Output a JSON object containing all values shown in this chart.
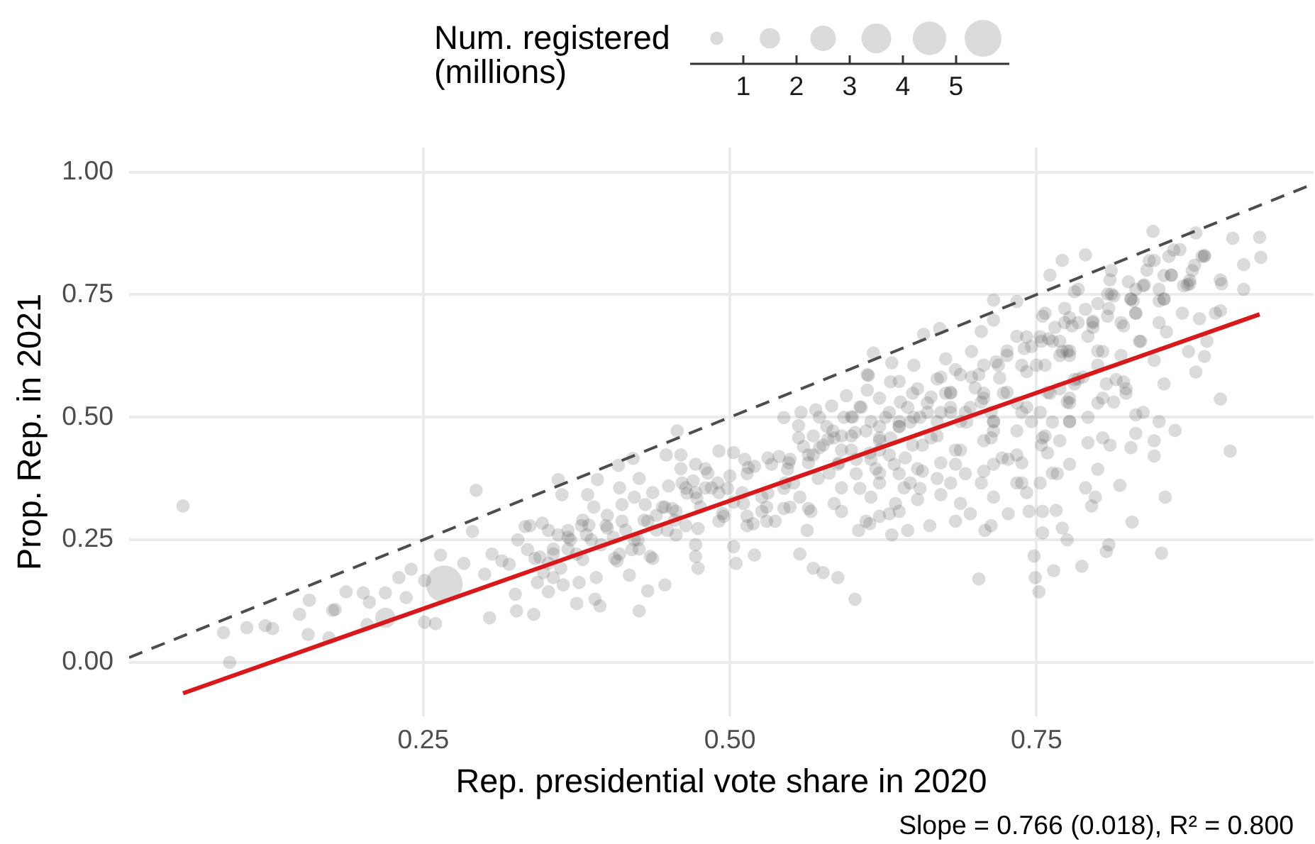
{
  "chart_data": {
    "type": "bubble",
    "xlabel": "Rep. presidential vote share in 2020",
    "ylabel": "Prop. Rep. in 2021",
    "legend_title": "Num. registered\n(millions)",
    "size_legend": [
      1,
      2,
      3,
      4,
      5
    ],
    "annotations": [
      "Slope = 0.766 (0.018), R² = 0.800"
    ],
    "xlim": [
      0.01,
      0.976
    ],
    "ylim": [
      -0.11,
      1.05
    ],
    "xticks": [
      0.25,
      {
        "value": 0.5,
        "label": "0.50"
      },
      0.75
    ],
    "yticks": [
      {
        "value": 0,
        "label": "0.00"
      },
      0.25,
      {
        "value": 0.5,
        "label": "0.50"
      },
      0.75,
      {
        "value": 1,
        "label": "1.00"
      }
    ],
    "grid": true,
    "series": [
      {
        "type": "bubble",
        "color": "#4d4d4d",
        "x": [
          0.267,
          0.219,
          0.054,
          0.092,
          0.087,
          0.106,
          0.121,
          0.127,
          0.149,
          0.156,
          0.157,
          0.173,
          0.178,
          0.176,
          0.187,
          0.201,
          0.206,
          0.204,
          0.219,
          0.23,
          0.24,
          0.236,
          0.251,
          0.251,
          0.26,
          0.264,
          0.283,
          0.293,
          0.29,
          0.304,
          0.326,
          0.34,
          0.333,
          0.36,
          0.347,
          0.327,
          0.314,
          0.325,
          0.343,
          0.352,
          0.362,
          0.356,
          0.306,
          0.363,
          0.392,
          0.409,
          0.421,
          0.457,
          0.448,
          0.46,
          0.472,
          0.491,
          0.503,
          0.544,
          0.558,
          0.556,
          0.57,
          0.583,
          0.595,
          0.612,
          0.617,
          0.632,
          0.612,
          0.638,
          0.384,
          0.389,
          0.412,
          0.412,
          0.431,
          0.447,
          0.472,
          0.485,
          0.51,
          0.53,
          0.547,
          0.568,
          0.591,
          0.615,
          0.634,
          0.622,
          0.599,
          0.579,
          0.638,
          0.368,
          0.383,
          0.4,
          0.368,
          0.352,
          0.356,
          0.364,
          0.377,
          0.391,
          0.375,
          0.39,
          0.394,
          0.408,
          0.418,
          0.426,
          0.433,
          0.447,
          0.435,
          0.456,
          0.474,
          0.472,
          0.503,
          0.505,
          0.52,
          0.491,
          0.514,
          0.537,
          0.557,
          0.563,
          0.568,
          0.576,
          0.588,
          0.602,
          0.566,
          0.591,
          0.611,
          0.632,
          0.638,
          0.622,
          0.845,
          0.88,
          0.91,
          0.932,
          0.933,
          0.919,
          0.919,
          0.901,
          0.9,
          0.9,
          0.889,
          0.887,
          0.88,
          0.874,
          0.883,
          0.875,
          0.887,
          0.867,
          0.854,
          0.831,
          0.827,
          0.835,
          0.856,
          0.854,
          0.846,
          0.79,
          0.771,
          0.761,
          0.781,
          0.808,
          0.809,
          0.831,
          0.715,
          0.715,
          0.734,
          0.671,
          0.658,
          0.65,
          0.613,
          0.757,
          0.773,
          0.796,
          0.775,
          0.753,
          0.738,
          0.757,
          0.781,
          0.8,
          0.815,
          0.823,
          0.831,
          0.85,
          0.8,
          0.777,
          0.726,
          0.707,
          0.688,
          0.68,
          0.707,
          0.734,
          0.753,
          0.715,
          0.692,
          0.661,
          0.649,
          0.622,
          0.607,
          0.638,
          0.669,
          0.908,
          0.855,
          0.852,
          0.828,
          0.818,
          0.846,
          0.863,
          0.809,
          0.807,
          0.787,
          0.764,
          0.752,
          0.749,
          0.748,
          0.775,
          0.771,
          0.755,
          0.703,
          0.708,
          0.713,
          0.727,
          0.744,
          0.755,
          0.766,
          0.795,
          0.798,
          0.79,
          0.8,
          0.81,
          0.827,
          0.831,
          0.846,
          0.767,
          0.777,
          0.753,
          0.742,
          0.715,
          0.696,
          0.684,
          0.663,
          0.645,
          0.605,
          0.672,
          0.653,
          0.63,
          0.615,
          0.638,
          0.657,
          0.684,
          0.707,
          0.727,
          0.738,
          0.757,
          0.777,
          0.746,
          0.715,
          0.688,
          0.657,
          0.622,
          0.603,
          0.5,
          0.52,
          0.54,
          0.56,
          0.58,
          0.6,
          0.65,
          0.68,
          0.7,
          0.72,
          0.74,
          0.76,
          0.79,
          0.81,
          0.84,
          0.86,
          0.45,
          0.47,
          0.43,
          0.4,
          0.38,
          0.465,
          0.49,
          0.494,
          0.474,
          0.515,
          0.531,
          0.548,
          0.531,
          0.552,
          0.564,
          0.573,
          0.585,
          0.589,
          0.602,
          0.614,
          0.606,
          0.627,
          0.631,
          0.643,
          0.647,
          0.655,
          0.664,
          0.672,
          0.68,
          0.68,
          0.697,
          0.693,
          0.705,
          0.713,
          0.717,
          0.722,
          0.738,
          0.742,
          0.746,
          0.755,
          0.759,
          0.771,
          0.775,
          0.779,
          0.788,
          0.796,
          0.792,
          0.804,
          0.813,
          0.821,
          0.829,
          0.837,
          0.85,
          0.854,
          0.87,
          0.879,
          0.862,
          0.887,
          0.763,
          0.738,
          0.763,
          0.792,
          0.804,
          0.821,
          0.813,
          0.837,
          0.655,
          0.68,
          0.705,
          0.635,
          0.614,
          0.585,
          0.581,
          0.556,
          0.544,
          0.511,
          0.498,
          0.453,
          0.461,
          0.482,
          0.473,
          0.519,
          0.544,
          0.622,
          0.688,
          0.734,
          0.759,
          0.713,
          0.726,
          0.734,
          0.763,
          0.755,
          0.792,
          0.808,
          0.825,
          0.846,
          0.875,
          0.672,
          0.664,
          0.639,
          0.697,
          0.705,
          0.676,
          0.647,
          0.606,
          0.622,
          0.593,
          0.573,
          0.564,
          0.631,
          0.3,
          0.32,
          0.335,
          0.345,
          0.37,
          0.385,
          0.395,
          0.405,
          0.415,
          0.425,
          0.44,
          0.455,
          0.42,
          0.44,
          0.38,
          0.36,
          0.337,
          0.352,
          0.368,
          0.379,
          0.399,
          0.41,
          0.422,
          0.433,
          0.445,
          0.449,
          0.456,
          0.464,
          0.476,
          0.48,
          0.491,
          0.495,
          0.503,
          0.514,
          0.526,
          0.534,
          0.545,
          0.549,
          0.557,
          0.437,
          0.422,
          0.46,
          0.48,
          0.387,
          0.356,
          0.341,
          0.348,
          0.375,
          0.406,
          0.426,
          0.437,
          0.472,
          0.464,
          0.514,
          0.53,
          0.549,
          0.526,
          0.512,
          0.426,
          0.41,
          0.564,
          0.576,
          0.588,
          0.591,
          0.603,
          0.611,
          0.619,
          0.63,
          0.638,
          0.649,
          0.653,
          0.661,
          0.669,
          0.676,
          0.684,
          0.688,
          0.696,
          0.703,
          0.707,
          0.715,
          0.723,
          0.726,
          0.734,
          0.742,
          0.75,
          0.754,
          0.761,
          0.769,
          0.777,
          0.765,
          0.777,
          0.742,
          0.719,
          0.684,
          0.669,
          0.653,
          0.645,
          0.63,
          0.615,
          0.599,
          0.584,
          0.568,
          0.572,
          0.591,
          0.622,
          0.642,
          0.669,
          0.692,
          0.715,
          0.734,
          0.754,
          0.769,
          0.781,
          0.707,
          0.672,
          0.622,
          0.599,
          0.769,
          0.777,
          0.784,
          0.796,
          0.8,
          0.811,
          0.819,
          0.827,
          0.831,
          0.838,
          0.834,
          0.85,
          0.854,
          0.86,
          0.873,
          0.877,
          0.885,
          0.773,
          0.784,
          0.811,
          0.842,
          0.858,
          0.777,
          0.8,
          0.819,
          0.769,
          0.784,
          0.807,
          0.823,
          0.777,
          0.804,
          0.896,
          0.9,
          0.85,
          0.869
        ],
        "values": [
          0.16,
          0.091,
          0.319,
          0.0,
          0.061,
          0.071,
          0.075,
          0.069,
          0.098,
          0.057,
          0.127,
          0.05,
          0.108,
          0.106,
          0.144,
          0.142,
          0.123,
          0.077,
          0.142,
          0.173,
          0.19,
          0.132,
          0.167,
          0.082,
          0.079,
          0.219,
          0.202,
          0.351,
          0.267,
          0.091,
          0.105,
          0.098,
          0.277,
          0.373,
          0.284,
          0.25,
          0.207,
          0.139,
          0.163,
          0.144,
          0.192,
          0.231,
          0.221,
          0.342,
          0.373,
          0.402,
          0.416,
          0.472,
          0.423,
          0.423,
          0.404,
          0.431,
          0.428,
          0.499,
          0.51,
          0.483,
          0.515,
          0.523,
          0.544,
          0.555,
          0.631,
          0.611,
          0.587,
          0.573,
          0.342,
          0.317,
          0.322,
          0.288,
          0.322,
          0.317,
          0.346,
          0.356,
          0.346,
          0.317,
          0.394,
          0.423,
          0.433,
          0.414,
          0.404,
          0.481,
          0.462,
          0.481,
          0.481,
          0.269,
          0.26,
          0.274,
          0.231,
          0.202,
          0.173,
          0.158,
          0.163,
          0.173,
          0.12,
          0.129,
          0.115,
          0.207,
          0.178,
          0.105,
          0.146,
          0.158,
          0.216,
          0.26,
          0.192,
          0.216,
          0.236,
          0.202,
          0.219,
          0.288,
          0.298,
          0.288,
          0.221,
          0.269,
          0.192,
          0.183,
          0.173,
          0.129,
          0.308,
          0.308,
          0.288,
          0.26,
          0.308,
          0.298,
          0.879,
          0.876,
          0.865,
          0.867,
          0.826,
          0.811,
          0.761,
          0.772,
          0.717,
          0.537,
          0.655,
          0.624,
          0.592,
          0.634,
          0.701,
          0.772,
          0.828,
          0.842,
          0.741,
          0.712,
          0.741,
          0.655,
          0.674,
          0.568,
          0.616,
          0.831,
          0.82,
          0.79,
          0.756,
          0.751,
          0.722,
          0.761,
          0.739,
          0.698,
          0.736,
          0.681,
          0.669,
          0.606,
          0.585,
          0.712,
          0.693,
          0.693,
          0.635,
          0.664,
          0.606,
          0.606,
          0.577,
          0.606,
          0.577,
          0.549,
          0.505,
          0.491,
          0.529,
          0.529,
          0.626,
          0.606,
          0.587,
          0.549,
          0.549,
          0.529,
          0.51,
          0.491,
          0.51,
          0.529,
          0.549,
          0.539,
          0.52,
          0.491,
          0.491,
          0.431,
          0.337,
          0.223,
          0.286,
          0.361,
          0.421,
          0.473,
          0.24,
          0.226,
          0.196,
          0.187,
          0.144,
          0.173,
          0.217,
          0.25,
          0.274,
          0.264,
          0.17,
          0.269,
          0.279,
          0.303,
          0.308,
          0.308,
          0.31,
          0.319,
          0.337,
          0.356,
          0.394,
          0.443,
          0.438,
          0.467,
          0.452,
          0.385,
          0.404,
          0.366,
          0.346,
          0.337,
          0.303,
          0.288,
          0.279,
          0.269,
          0.269,
          0.342,
          0.332,
          0.303,
          0.337,
          0.385,
          0.39,
          0.404,
          0.39,
          0.414,
          0.366,
          0.462,
          0.491,
          0.491,
          0.472,
          0.433,
          0.443,
          0.433,
          0.385,
          0.38,
          0.4,
          0.42,
          0.44,
          0.455,
          0.5,
          0.5,
          0.52,
          0.56,
          0.58,
          0.64,
          0.66,
          0.72,
          0.78,
          0.8,
          0.79,
          0.36,
          0.37,
          0.29,
          0.3,
          0.29,
          0.345,
          0.366,
          0.304,
          0.273,
          0.397,
          0.417,
          0.407,
          0.345,
          0.366,
          0.314,
          0.438,
          0.458,
          0.407,
          0.469,
          0.427,
          0.355,
          0.5,
          0.458,
          0.417,
          0.366,
          0.5,
          0.458,
          0.407,
          0.551,
          0.51,
          0.582,
          0.49,
          0.531,
          0.458,
          0.613,
          0.417,
          0.51,
          0.593,
          0.644,
          0.458,
          0.551,
          0.634,
          0.531,
          0.686,
          0.582,
          0.696,
          0.5,
          0.634,
          0.747,
          0.686,
          0.737,
          0.768,
          0.737,
          0.789,
          0.768,
          0.81,
          0.841,
          0.83,
          0.49,
          0.407,
          0.386,
          0.448,
          0.458,
          0.572,
          0.531,
          0.51,
          0.355,
          0.366,
          0.366,
          0.324,
          0.283,
          0.324,
          0.386,
          0.458,
          0.355,
          0.324,
          0.355,
          0.314,
          0.366,
          0.386,
          0.335,
          0.283,
          0.314,
          0.386,
          0.324,
          0.366,
          0.427,
          0.51,
          0.551,
          0.665,
          0.655,
          0.706,
          0.665,
          0.706,
          0.776,
          0.82,
          0.779,
          0.582,
          0.541,
          0.531,
          0.634,
          0.675,
          0.619,
          0.49,
          0.521,
          0.458,
          0.5,
          0.5,
          0.407,
          0.572,
          0.18,
          0.2,
          0.23,
          0.215,
          0.25,
          0.28,
          0.24,
          0.255,
          0.27,
          0.25,
          0.3,
          0.29,
          0.23,
          0.27,
          0.21,
          0.26,
          0.279,
          0.269,
          0.255,
          0.279,
          0.279,
          0.221,
          0.25,
          0.288,
          0.317,
          0.269,
          0.308,
          0.356,
          0.317,
          0.356,
          0.346,
          0.298,
          0.327,
          0.385,
          0.337,
          0.404,
          0.366,
          0.414,
          0.337,
          0.346,
          0.337,
          0.395,
          0.395,
          0.25,
          0.221,
          0.212,
          0.183,
          0.221,
          0.212,
          0.231,
          0.212,
          0.24,
          0.279,
          0.279,
          0.288,
          0.317,
          0.308,
          0.414,
          0.375,
          0.356,
          0.423,
          0.443,
          0.404,
          0.462,
          0.414,
          0.472,
          0.395,
          0.423,
          0.481,
          0.443,
          0.395,
          0.51,
          0.462,
          0.549,
          0.433,
          0.491,
          0.52,
          0.587,
          0.452,
          0.491,
          0.549,
          0.635,
          0.472,
          0.52,
          0.606,
          0.655,
          0.549,
          0.626,
          0.491,
          0.683,
          0.703,
          0.664,
          0.606,
          0.597,
          0.578,
          0.558,
          0.52,
          0.51,
          0.491,
          0.501,
          0.472,
          0.462,
          0.375,
          0.356,
          0.366,
          0.356,
          0.375,
          0.385,
          0.404,
          0.423,
          0.443,
          0.452,
          0.568,
          0.539,
          0.51,
          0.452,
          0.433,
          0.655,
          0.635,
          0.693,
          0.683,
          0.732,
          0.751,
          0.693,
          0.741,
          0.712,
          0.77,
          0.655,
          0.761,
          0.741,
          0.79,
          0.77,
          0.799,
          0.828,
          0.722,
          0.761,
          0.799,
          0.819,
          0.828,
          0.626,
          0.635,
          0.626,
          0.558,
          0.578,
          0.568,
          0.558,
          0.539,
          0.539,
          0.712,
          0.78,
          0.693,
          0.712
        ],
        "sizes": [
          5.5,
          1.5,
          0.5,
          0.5,
          0.5,
          0.5,
          0.5,
          0.5,
          0.5,
          0.5,
          0.5,
          0.5,
          0.5,
          0.5,
          0.5,
          0.5,
          0.5,
          0.5,
          0.5,
          0.5,
          0.5,
          0.5,
          0.5,
          0.5,
          0.5,
          0.5,
          0.5,
          0.5,
          0.5,
          0.5,
          0.5,
          0.5,
          0.5,
          0.5,
          0.5,
          0.5,
          0.5,
          0.5,
          0.5,
          0.5,
          0.5,
          0.5,
          0.5,
          0.5,
          0.5,
          0.5,
          0.5,
          0.5,
          0.5,
          0.5,
          0.5,
          0.5,
          0.5,
          0.5,
          0.5,
          0.5,
          0.5,
          0.5,
          0.5,
          0.5,
          0.5,
          0.5,
          0.5,
          0.5,
          0.5,
          0.5,
          0.5,
          0.5,
          0.5,
          0.5,
          0.5,
          0.5,
          0.5,
          0.5,
          0.5,
          0.5,
          0.5,
          0.5,
          0.5,
          0.5,
          0.5,
          0.5,
          0.5,
          0.5,
          0.5,
          0.5,
          0.5,
          0.5,
          0.5,
          0.5,
          0.5,
          0.5,
          0.5,
          0.5,
          0.5,
          0.5,
          0.5,
          0.5,
          0.5,
          0.5,
          0.5,
          0.5,
          0.5,
          0.5,
          0.5,
          0.5,
          0.5,
          0.5,
          0.5,
          0.5,
          0.5,
          0.5,
          0.5,
          0.5,
          0.5,
          0.5,
          0.5,
          0.5,
          0.5,
          0.5,
          0.5,
          0.5,
          0.5,
          0.5,
          0.5,
          0.5,
          0.5,
          0.5,
          0.5,
          0.5,
          0.5,
          0.5,
          0.5,
          0.5,
          0.5,
          0.5,
          0.5,
          0.5,
          0.5,
          0.5,
          0.5,
          0.5,
          0.5,
          0.5,
          0.5,
          0.5,
          0.5,
          0.5,
          0.5,
          0.5,
          0.5,
          0.5,
          0.5,
          0.5,
          0.5,
          0.5,
          0.5,
          0.5,
          0.5,
          0.5,
          0.5,
          0.5,
          0.5,
          0.5,
          0.5,
          0.5,
          0.5,
          0.5,
          0.5,
          0.5,
          0.5,
          0.5,
          0.5,
          0.5,
          0.5,
          0.5,
          0.5,
          0.5,
          0.5,
          0.5,
          0.5,
          0.5,
          0.5,
          0.5,
          0.5,
          0.5,
          0.5,
          0.5,
          0.5,
          0.5,
          0.5,
          0.5,
          0.5,
          0.5,
          0.5,
          0.5,
          0.5,
          0.5,
          0.5,
          0.5,
          0.5,
          0.5,
          0.5,
          0.5,
          0.5,
          0.5,
          0.5,
          0.5,
          0.5,
          0.5,
          0.5,
          0.5,
          0.5,
          0.5,
          0.5,
          0.5,
          0.5,
          0.5,
          0.5,
          0.5,
          0.5,
          0.5,
          0.5,
          0.5,
          0.5,
          0.5,
          0.5,
          0.5,
          0.5,
          0.5,
          0.5,
          0.5,
          0.5,
          0.5,
          0.5,
          0.5,
          0.5,
          0.5,
          0.5,
          0.5,
          0.5,
          0.5,
          0.5,
          0.5,
          0.5,
          0.5,
          0.5,
          0.5,
          0.5,
          0.5,
          0.5,
          0.5,
          0.5,
          0.5,
          0.5,
          0.5,
          0.5,
          0.5,
          0.5,
          0.5,
          0.5,
          0.5,
          0.5,
          0.5,
          0.5,
          0.5,
          0.5,
          0.5,
          0.5,
          0.5,
          0.5,
          0.5,
          0.5,
          0.5,
          0.5,
          0.5,
          0.5,
          0.5,
          0.5,
          0.5,
          0.5,
          0.5,
          0.5,
          0.5,
          0.5,
          0.5,
          0.5,
          0.5,
          0.5,
          0.5,
          0.5,
          0.5,
          0.5,
          0.5,
          0.5,
          0.5,
          0.5,
          0.5,
          0.5,
          0.5,
          0.5,
          0.5,
          0.5,
          0.5,
          0.5,
          0.5,
          0.5,
          0.5,
          0.5,
          0.5,
          0.5,
          0.5,
          0.5,
          0.5,
          0.5,
          0.5,
          0.5,
          0.5,
          0.5,
          0.5,
          0.5,
          0.5,
          0.5,
          0.5,
          0.5,
          0.5,
          0.5,
          0.5,
          0.5,
          0.5,
          0.5,
          0.5,
          0.5,
          0.5,
          0.5,
          0.5,
          0.5,
          0.5,
          0.5,
          0.5,
          0.5,
          0.5,
          0.5,
          0.5,
          0.5,
          0.5,
          0.5,
          0.5,
          0.5,
          0.5,
          0.5,
          0.5,
          0.5,
          0.5,
          0.5,
          0.5,
          0.5,
          0.5,
          0.5,
          0.5,
          0.5,
          0.5,
          0.5,
          0.5,
          0.5,
          0.5,
          0.5,
          0.5,
          0.5,
          0.5,
          0.5,
          0.5,
          0.5,
          0.5,
          0.5,
          0.5,
          0.5,
          0.5,
          0.5,
          0.5,
          0.5,
          0.5,
          0.5,
          0.5,
          0.5,
          0.5,
          0.5,
          0.5,
          0.5,
          0.5,
          0.5,
          0.5,
          0.5,
          0.5,
          0.5,
          0.5,
          0.5,
          0.5,
          0.5,
          0.5,
          0.5,
          0.5,
          0.5,
          0.5,
          0.5,
          0.5,
          0.5,
          0.5,
          0.5,
          0.5,
          0.5,
          0.5,
          0.5,
          0.5,
          0.5,
          0.5,
          0.5,
          0.5,
          0.5,
          0.5,
          0.5,
          0.5,
          0.5,
          0.5,
          0.5,
          0.5,
          0.5,
          0.5,
          0.5,
          0.5,
          0.5,
          0.5,
          0.5,
          0.5,
          0.5,
          0.5,
          0.5,
          0.5,
          0.5,
          0.5,
          0.5,
          0.5,
          0.5,
          0.5,
          0.5,
          0.5,
          0.5,
          0.5,
          0.5,
          0.5,
          0.5,
          0.5,
          0.5,
          0.5,
          0.5,
          0.5,
          0.5,
          0.5,
          0.5,
          0.5,
          0.5,
          0.5,
          0.5,
          0.5,
          0.5,
          0.5,
          0.5,
          0.5,
          0.5,
          0.5,
          0.5,
          0.5,
          0.5,
          0.5,
          0.5,
          0.5,
          0.5,
          0.5,
          0.5,
          0.5,
          0.5,
          0.5,
          0.5,
          0.5,
          0.5,
          0.5,
          0.5,
          0.5,
          0.5,
          0.5,
          0.5,
          0.5,
          0.5,
          0.5,
          0.5,
          0.5,
          0.5,
          0.5,
          0.5,
          0.5,
          0.5,
          0.5,
          0.5,
          0.5,
          0.5,
          0.5,
          0.5,
          0.5,
          0.5,
          0.5,
          0.5,
          0.5,
          0.5,
          0.5,
          0.5,
          0.5,
          0.5,
          0.5,
          0.5,
          0.5,
          0.5,
          0.5,
          0.5,
          0.5,
          0.5,
          0.5,
          0.5,
          0.5,
          0.5
        ]
      },
      {
        "type": "line",
        "color": "#d7191c",
        "x": [
          0.054,
          0.932
        ],
        "values": [
          -0.063,
          0.71
        ]
      },
      {
        "type": "line",
        "color": "#4d4d4d",
        "line_style": "dashed",
        "x": [
          0.01,
          0.976
        ],
        "values": [
          0.01,
          0.976
        ]
      }
    ]
  }
}
